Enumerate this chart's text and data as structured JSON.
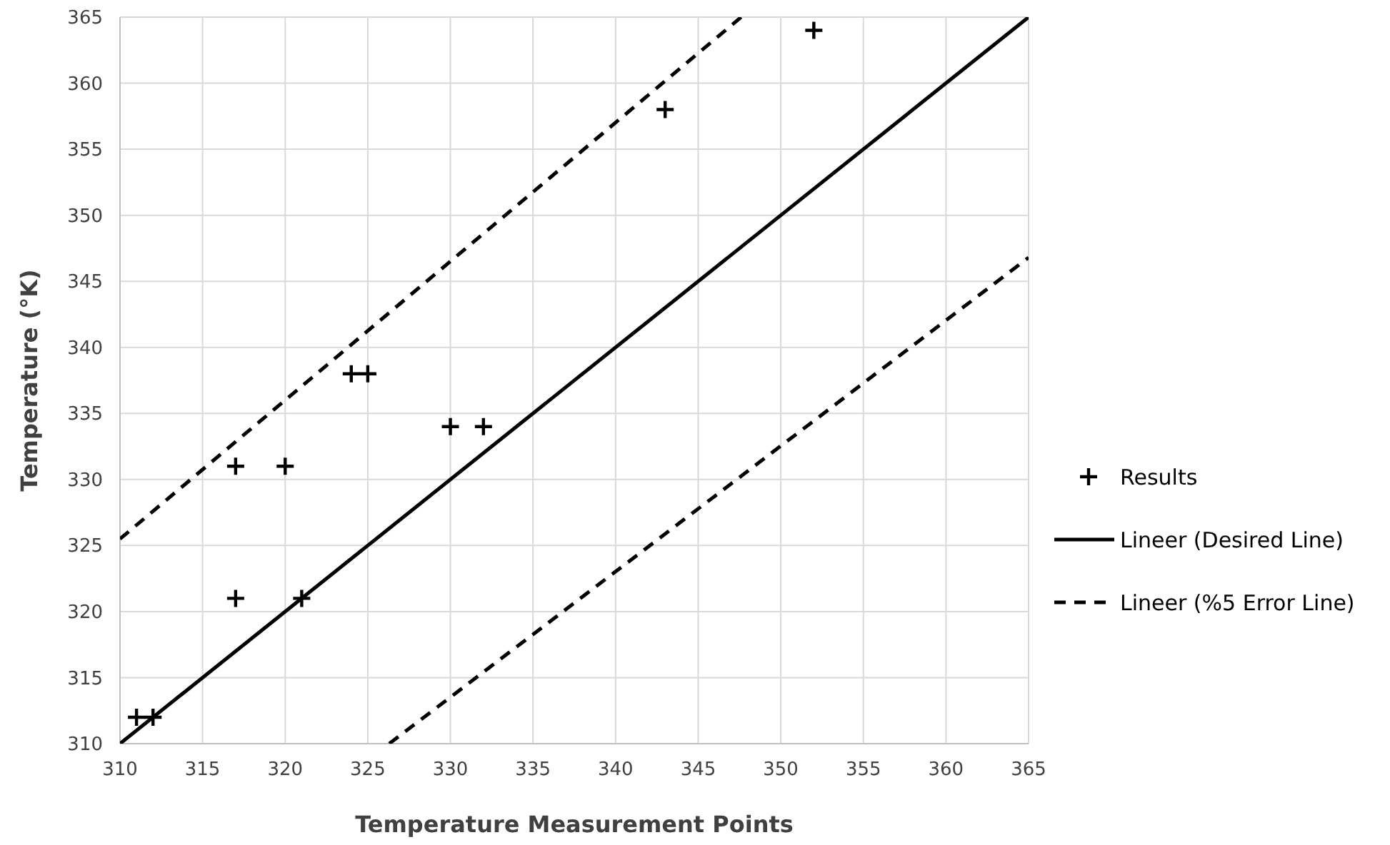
{
  "chart_data": {
    "type": "scatter",
    "xlabel": "Temperature Measurement Points",
    "ylabel": "Temperature (°K)",
    "xlim": [
      310,
      365
    ],
    "xticks": [
      310,
      315,
      320,
      325,
      330,
      335,
      340,
      345,
      350,
      355,
      360,
      365
    ],
    "ylim": [
      310,
      365
    ],
    "yticks": [
      310,
      315,
      320,
      325,
      330,
      335,
      340,
      345,
      350,
      355,
      360,
      365
    ],
    "grid": true,
    "legend": "right",
    "series": [
      {
        "name": "Results",
        "marker": "cross",
        "color": "#000000",
        "x": [
          311,
          312,
          317,
          317,
          320,
          321,
          324,
          325,
          330,
          332,
          343,
          352
        ],
        "values": [
          312,
          312,
          331,
          321,
          331,
          321,
          338,
          338,
          334,
          334,
          358,
          364
        ]
      },
      {
        "name": "Lineer (Desired Line)",
        "type": "line",
        "marker": "none",
        "line_style": "solid",
        "color": "#000000",
        "x": [
          310,
          365
        ],
        "values": [
          310,
          365
        ]
      },
      {
        "name": "Lineer (%5 Error Line)",
        "type": "line",
        "marker": "none",
        "line_style": "dashed",
        "color": "#000000",
        "x": [
          310,
          347.6
        ],
        "values": [
          325.5,
          365
        ]
      },
      {
        "type": "line",
        "marker": "none",
        "line_style": "dashed",
        "color": "#000000",
        "x": [
          326.3,
          365
        ],
        "values": [
          310,
          346.8
        ]
      }
    ]
  }
}
